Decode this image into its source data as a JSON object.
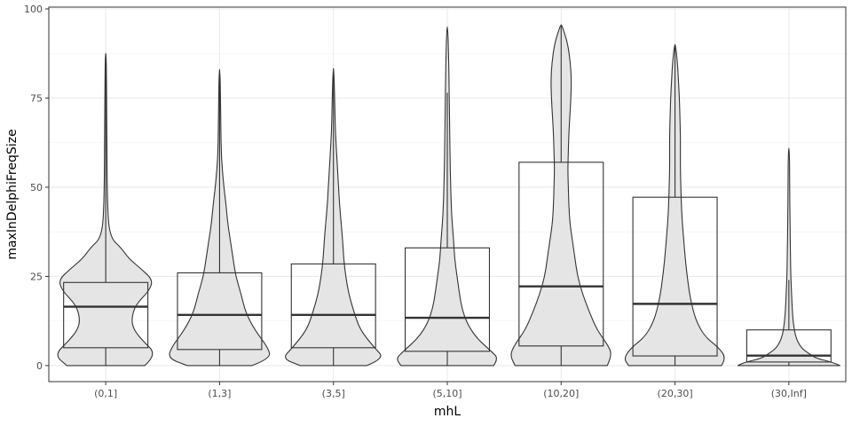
{
  "chart_data": {
    "type": "violin",
    "overlay": "boxplot",
    "xlabel": "mhL",
    "ylabel": "maxInDelphiFreqSize",
    "ylim": [
      0,
      100
    ],
    "yticks": [
      0,
      25,
      50,
      75,
      100
    ],
    "grid": true,
    "legend": "none",
    "fill_color": "#e5e5e5",
    "line_color": "#333333",
    "categories": [
      "(0,1]",
      "(1,3]",
      "(3,5]",
      "(5,10]",
      "(10,20]",
      "(20,30]",
      "(30,Inf]"
    ],
    "boxes": [
      {
        "q1": 5,
        "median": 16.5,
        "q3": 23.3,
        "whisker_low": 0,
        "whisker_high": 87.5
      },
      {
        "q1": 4.5,
        "median": 14.2,
        "q3": 26,
        "whisker_low": 0,
        "whisker_high": 83
      },
      {
        "q1": 5,
        "median": 14.2,
        "q3": 28.5,
        "whisker_low": 0,
        "whisker_high": 83.3
      },
      {
        "q1": 4,
        "median": 13.4,
        "q3": 33,
        "whisker_low": 0,
        "whisker_high": 76.5
      },
      {
        "q1": 5.5,
        "median": 22.2,
        "q3": 57,
        "whisker_low": 0,
        "whisker_high": 95.5
      },
      {
        "q1": 2.7,
        "median": 17.3,
        "q3": 47.2,
        "whisker_low": 0,
        "whisker_high": 90
      },
      {
        "q1": 1,
        "median": 2.8,
        "q3": 10,
        "whisker_low": 0,
        "whisker_high": 24
      }
    ],
    "violins": [
      {
        "min": 0,
        "max": 87.5,
        "profile": [
          [
            0,
            0.76
          ],
          [
            3,
            1.0
          ],
          [
            7,
            0.72
          ],
          [
            10,
            0.55
          ],
          [
            13,
            0.5
          ],
          [
            17,
            0.58
          ],
          [
            21,
            0.85
          ],
          [
            24,
            0.92
          ],
          [
            27,
            0.7
          ],
          [
            30,
            0.45
          ],
          [
            33,
            0.3
          ],
          [
            36,
            0.08
          ],
          [
            45,
            0.03
          ],
          [
            70,
            0.02
          ],
          [
            87.5,
            0.01
          ]
        ]
      },
      {
        "min": 0,
        "max": 83,
        "profile": [
          [
            0,
            0.6
          ],
          [
            2,
            0.95
          ],
          [
            5,
            0.9
          ],
          [
            10,
            0.65
          ],
          [
            15,
            0.48
          ],
          [
            20,
            0.4
          ],
          [
            25,
            0.3
          ],
          [
            30,
            0.25
          ],
          [
            35,
            0.2
          ],
          [
            40,
            0.15
          ],
          [
            45,
            0.12
          ],
          [
            50,
            0.08
          ],
          [
            55,
            0.05
          ],
          [
            60,
            0.03
          ],
          [
            70,
            0.02
          ],
          [
            83,
            0.01
          ]
        ]
      },
      {
        "min": 0,
        "max": 83.3,
        "profile": [
          [
            0,
            0.65
          ],
          [
            2,
            1.0
          ],
          [
            5,
            0.8
          ],
          [
            10,
            0.52
          ],
          [
            15,
            0.4
          ],
          [
            20,
            0.3
          ],
          [
            25,
            0.24
          ],
          [
            30,
            0.2
          ],
          [
            35,
            0.18
          ],
          [
            40,
            0.15
          ],
          [
            45,
            0.12
          ],
          [
            50,
            0.1
          ],
          [
            55,
            0.08
          ],
          [
            60,
            0.06
          ],
          [
            65,
            0.04
          ],
          [
            70,
            0.03
          ],
          [
            83.3,
            0.01
          ]
        ]
      },
      {
        "min": 0,
        "max": 95,
        "profile": [
          [
            0,
            0.95
          ],
          [
            2,
            1.05
          ],
          [
            4,
            0.9
          ],
          [
            8,
            0.58
          ],
          [
            12,
            0.4
          ],
          [
            16,
            0.3
          ],
          [
            20,
            0.25
          ],
          [
            25,
            0.2
          ],
          [
            30,
            0.15
          ],
          [
            35,
            0.13
          ],
          [
            40,
            0.1
          ],
          [
            45,
            0.08
          ],
          [
            55,
            0.06
          ],
          [
            65,
            0.05
          ],
          [
            75,
            0.04
          ],
          [
            85,
            0.03
          ],
          [
            95,
            0.01
          ]
        ]
      },
      {
        "min": 0,
        "max": 95.5,
        "profile": [
          [
            0,
            0.9
          ],
          [
            3,
            1.0
          ],
          [
            6,
            0.9
          ],
          [
            10,
            0.7
          ],
          [
            15,
            0.55
          ],
          [
            20,
            0.42
          ],
          [
            25,
            0.32
          ],
          [
            30,
            0.27
          ],
          [
            35,
            0.22
          ],
          [
            40,
            0.17
          ],
          [
            45,
            0.15
          ],
          [
            50,
            0.14
          ],
          [
            55,
            0.13
          ],
          [
            60,
            0.14
          ],
          [
            65,
            0.15
          ],
          [
            70,
            0.17
          ],
          [
            75,
            0.19
          ],
          [
            80,
            0.2
          ],
          [
            85,
            0.18
          ],
          [
            90,
            0.13
          ],
          [
            93,
            0.07
          ],
          [
            95.5,
            0.01
          ]
        ]
      },
      {
        "min": 0,
        "max": 90,
        "profile": [
          [
            0,
            0.95
          ],
          [
            2,
            1.05
          ],
          [
            5,
            0.9
          ],
          [
            8,
            0.62
          ],
          [
            12,
            0.45
          ],
          [
            16,
            0.36
          ],
          [
            20,
            0.3
          ],
          [
            25,
            0.25
          ],
          [
            30,
            0.21
          ],
          [
            35,
            0.18
          ],
          [
            40,
            0.15
          ],
          [
            45,
            0.13
          ],
          [
            50,
            0.12
          ],
          [
            55,
            0.11
          ],
          [
            60,
            0.11
          ],
          [
            65,
            0.11
          ],
          [
            70,
            0.1
          ],
          [
            75,
            0.09
          ],
          [
            80,
            0.07
          ],
          [
            85,
            0.05
          ],
          [
            90,
            0.01
          ]
        ]
      },
      {
        "min": 0,
        "max": 61,
        "profile": [
          [
            0,
            0.93
          ],
          [
            1,
            0.78
          ],
          [
            2,
            0.5
          ],
          [
            3.5,
            0.35
          ],
          [
            5,
            0.22
          ],
          [
            8,
            0.12
          ],
          [
            12,
            0.08
          ],
          [
            16,
            0.06
          ],
          [
            20,
            0.05
          ],
          [
            25,
            0.035
          ],
          [
            30,
            0.03
          ],
          [
            40,
            0.02
          ],
          [
            50,
            0.015
          ],
          [
            61,
            0.01
          ]
        ]
      }
    ]
  }
}
